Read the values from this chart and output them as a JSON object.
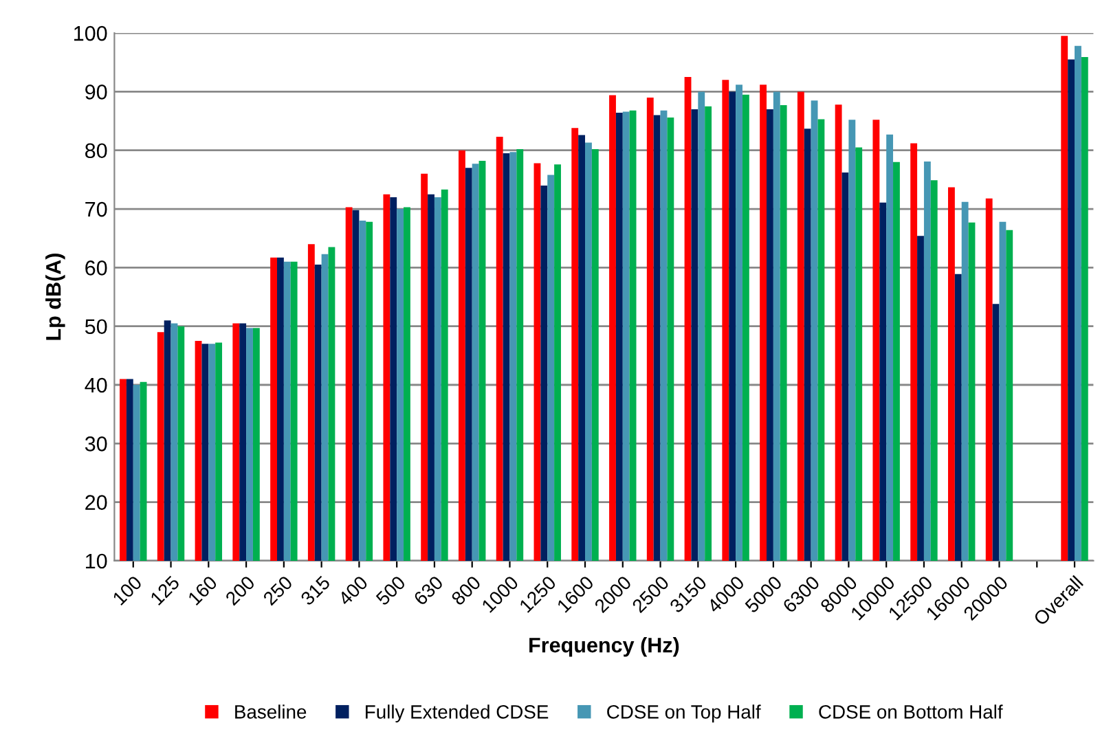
{
  "chart_data": {
    "type": "bar",
    "xlabel": "Frequency (Hz)",
    "ylabel": "Lp dB(A)",
    "categories": [
      "100",
      "125",
      "160",
      "200",
      "250",
      "315",
      "400",
      "500",
      "630",
      "800",
      "1000",
      "1250",
      "1600",
      "2000",
      "2500",
      "3150",
      "4000",
      "5000",
      "6300",
      "8000",
      "10000",
      "12500",
      "16000",
      "20000",
      null,
      "Overall"
    ],
    "series": [
      {
        "name": "Baseline",
        "color": "#ff0000",
        "values": [
          41,
          49,
          47.5,
          50.5,
          61.7,
          64,
          70.3,
          72.5,
          76,
          80,
          82.3,
          77.8,
          83.8,
          89.4,
          89,
          92.5,
          92,
          91.2,
          90,
          87.8,
          85.2,
          81.2,
          73.7,
          71.8,
          null,
          99.5
        ]
      },
      {
        "name": "Fully Extended CDSE",
        "color": "#002060",
        "values": [
          41,
          51,
          47,
          50.5,
          61.7,
          60.5,
          69.8,
          72,
          72.5,
          77,
          79.5,
          74,
          82.6,
          86.4,
          86,
          87,
          90,
          87,
          83.7,
          76.2,
          71.1,
          65.4,
          58.9,
          53.8,
          null,
          95.5
        ]
      },
      {
        "name": "CDSE on Top Half",
        "color": "#4697b4",
        "values": [
          40,
          50.5,
          47,
          49.7,
          61,
          62.3,
          68,
          70,
          72,
          77.7,
          79.7,
          75.8,
          81.3,
          86.6,
          86.8,
          90,
          91.2,
          90,
          88.5,
          85.2,
          82.7,
          78.1,
          71.2,
          67.8,
          null,
          97.8
        ]
      },
      {
        "name": "CDSE on Bottom Half",
        "color": "#00b050",
        "values": [
          40.5,
          50,
          47.2,
          49.7,
          61,
          63.5,
          67.8,
          70.3,
          73.3,
          78.2,
          80.2,
          77.6,
          80.2,
          86.8,
          85.6,
          87.5,
          89.5,
          87.7,
          85.3,
          80.5,
          78,
          74.9,
          67.7,
          66.4,
          null,
          95.9
        ]
      }
    ],
    "ylim": [
      10,
      100
    ],
    "yticks": [
      10,
      20,
      30,
      40,
      50,
      60,
      70,
      80,
      90,
      100
    ],
    "grid": "y",
    "legend": "bottom"
  }
}
